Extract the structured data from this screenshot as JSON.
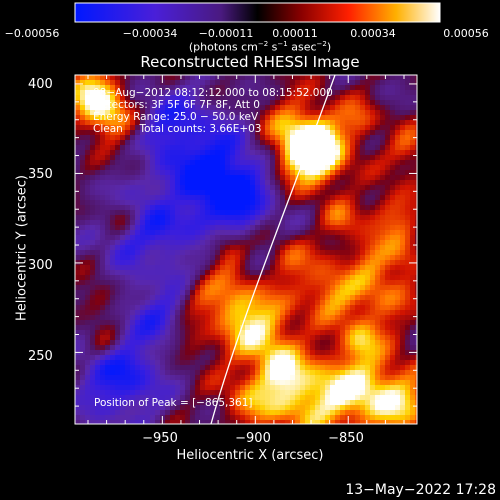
{
  "colorbar": {
    "ticks": [
      "−0.00056",
      "−0.00034",
      "−0.00011",
      "0.00011",
      "0.00034",
      "0.00056"
    ],
    "units_line": "(photons cm",
    "units_sup1": "−2",
    "units_mid1": " s",
    "units_sup2": "−1",
    "units_mid2": " asec",
    "units_sup3": "−2",
    "units_end": ")"
  },
  "title": "Reconstructed RHESSI Image",
  "info_lines": [
    "08−Aug−2012 08:12:12.000 to 08:15:52.000",
    "Detectors: 3F 5F 6F 7F 8F, Att 0",
    "Energy Range: 25.0 − 50.0 keV",
    "Clean     Total counts: 3.66E+03"
  ],
  "peak_label": "Position of Peak = [−865,361]",
  "x_axis": {
    "label": "Heliocentric X (arcsec)",
    "ticks": [
      "−950",
      "−900",
      "−850"
    ],
    "range": [
      -997,
      -813
    ]
  },
  "y_axis": {
    "label": "Heliocentric Y (arcsec)",
    "ticks": [
      "400",
      "350",
      "300",
      "250"
    ],
    "range": [
      210,
      405
    ]
  },
  "footer_date": "13−May−2022 17:28",
  "colors": {
    "background": "#000000",
    "limb": "#ffffff"
  },
  "colormap": "blue-purple-red-yellow-white"
}
